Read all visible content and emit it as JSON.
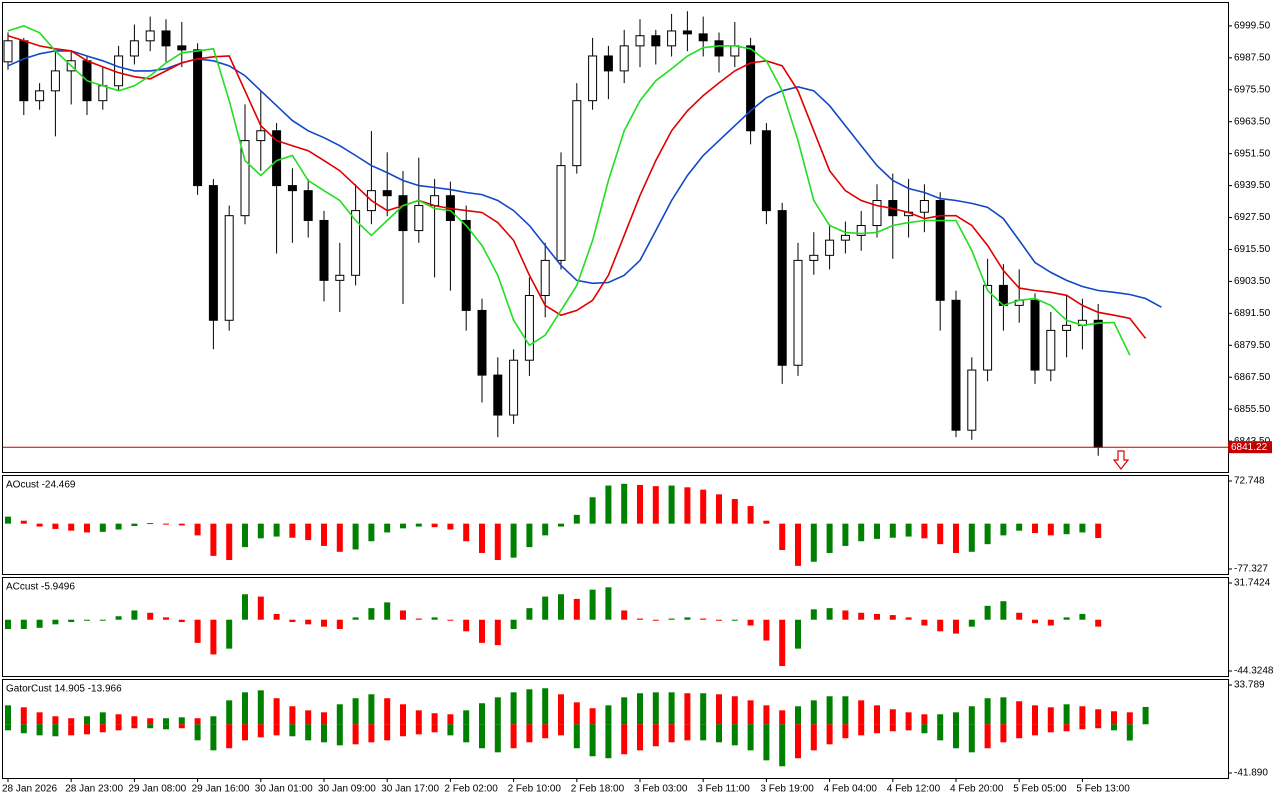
{
  "chart_data": [
    {
      "type": "candlestick",
      "categories": [
        "28 Jan 2026",
        null,
        null,
        null,
        "28 Jan 23:00",
        null,
        null,
        null,
        "29 Jan 08:00",
        null,
        null,
        null,
        "29 Jan 16:00",
        null,
        null,
        null,
        "30 Jan 01:00",
        null,
        null,
        null,
        "30 Jan 09:00",
        null,
        null,
        null,
        "30 Jan 17:00",
        null,
        null,
        null,
        "2 Feb 02:00",
        null,
        null,
        null,
        "2 Feb 10:00",
        null,
        null,
        null,
        "2 Feb 18:00",
        null,
        null,
        null,
        "3 Feb 03:00",
        null,
        null,
        null,
        "3 Feb 11:00",
        null,
        null,
        null,
        "3 Feb 19:00",
        null,
        null,
        null,
        "4 Feb 04:00",
        null,
        null,
        null,
        "4 Feb 12:00",
        null,
        null,
        null,
        "4 Feb 20:00",
        null,
        null,
        null,
        "5 Feb 05:00",
        null,
        null,
        null,
        "5 Feb 13:00",
        null,
        null,
        null,
        null,
        null
      ],
      "open": [
        6986.0,
        6993.9,
        6971.4,
        6975.1,
        6982.6,
        6986.4,
        6971.4,
        6977.0,
        6988.2,
        6993.9,
        6997.6,
        6992.0,
        6990.5,
        6939.5,
        6888.9,
        6928.2,
        6956.4,
        6960.1,
        6939.5,
        6937.6,
        6926.4,
        6903.9,
        6905.8,
        6930.1,
        6937.6,
        6935.7,
        6922.6,
        6932.0,
        6935.7,
        6926.4,
        6892.6,
        6868.3,
        6853.3,
        6873.9,
        6898.2,
        6911.4,
        6947.0,
        6971.4,
        6988.2,
        6982.6,
        6992.0,
        6995.8,
        6992.0,
        6997.6,
        6996.5,
        6993.9,
        6988.2,
        6992.0,
        6960.1,
        6930.1,
        6872.0,
        6911.4,
        6913.3,
        6919.0,
        6920.8,
        6924.5,
        6933.9,
        6928.2,
        6929.5,
        6933.9,
        6896.4,
        6847.6,
        6870.2,
        6902.0,
        6894.5,
        6896.4,
        6870.2,
        6885.1,
        6887.0,
        6888.9,
        null,
        null,
        null,
        null
      ],
      "high": [
        6997.0,
        6995.0,
        6978.0,
        6990.0,
        6990.0,
        6988.0,
        6984.0,
        6992.0,
        7000.0,
        7003.0,
        7002.0,
        7001.0,
        6993.0,
        6942.0,
        6932.0,
        6970.0,
        6975.0,
        6963.0,
        6946.0,
        6942.0,
        6930.0,
        6918.0,
        6940.0,
        6960.0,
        6952.0,
        6945.0,
        6950.0,
        6942.0,
        6941.0,
        6932.0,
        6897.0,
        6875.0,
        6878.0,
        6905.0,
        6918.0,
        6952.0,
        6978.0,
        6995.0,
        6992.0,
        6998.0,
        7002.0,
        6998.0,
        7004.0,
        7005.0,
        7003.0,
        6997.0,
        7001.0,
        6995.0,
        6963.0,
        6933.0,
        6918.0,
        6922.0,
        6925.0,
        6926.0,
        6930.0,
        6940.0,
        6944.0,
        6942.0,
        6940.0,
        6937.0,
        6900.0,
        6875.0,
        6912.0,
        6910.0,
        6908.0,
        6899.0,
        6892.0,
        6898.0,
        6897.0,
        6895.0,
        null,
        null,
        null,
        null
      ],
      "low": [
        6983.0,
        6966.0,
        6968.0,
        6958.0,
        6970.0,
        6966.0,
        6968.0,
        6975.0,
        6985.0,
        6990.0,
        6986.0,
        6984.0,
        6936.0,
        6878.0,
        6885.0,
        6925.0,
        6945.0,
        6914.0,
        6918.0,
        6920.0,
        6896.0,
        6892.0,
        6902.0,
        6925.0,
        6928.0,
        6895.0,
        6918.0,
        6905.0,
        6900.0,
        6885.0,
        6858.0,
        6845.0,
        6850.0,
        6868.0,
        6890.0,
        6908.0,
        6944.0,
        6968.0,
        6972.0,
        6978.0,
        6984.0,
        6985.0,
        6988.0,
        6990.0,
        6988.0,
        6982.0,
        6984.0,
        6955.0,
        6925.0,
        6865.0,
        6868.0,
        6906.0,
        6908.0,
        6914.0,
        6915.0,
        6920.0,
        6912.0,
        6920.0,
        6922.0,
        6885.0,
        6845.0,
        6844.0,
        6866.0,
        6885.0,
        6888.0,
        6865.0,
        6866.0,
        6875.0,
        6878.0,
        6838.0,
        null,
        null,
        null,
        null
      ],
      "close": [
        6993.9,
        6971.4,
        6975.1,
        6982.6,
        6986.4,
        6971.4,
        6977.0,
        6988.2,
        6993.9,
        6997.6,
        6992.0,
        6990.5,
        6939.5,
        6888.9,
        6928.2,
        6956.4,
        6960.1,
        6939.5,
        6937.6,
        6926.4,
        6903.9,
        6905.8,
        6930.1,
        6937.6,
        6935.7,
        6922.6,
        6932.0,
        6935.7,
        6926.4,
        6892.6,
        6868.3,
        6853.3,
        6873.9,
        6898.2,
        6911.4,
        6947.0,
        6971.4,
        6988.2,
        6982.6,
        6992.0,
        6995.8,
        6992.0,
        6997.6,
        6996.5,
        6993.9,
        6988.2,
        6992.0,
        6960.1,
        6930.1,
        6872.0,
        6911.4,
        6913.3,
        6919.0,
        6920.8,
        6924.5,
        6933.9,
        6928.2,
        6929.5,
        6933.9,
        6896.4,
        6847.6,
        6870.2,
        6902.0,
        6894.5,
        6896.4,
        6870.2,
        6885.1,
        6887.0,
        6888.9,
        6841.22,
        null,
        null,
        null,
        null
      ],
      "bull_color": "#ffffff",
      "bear_color": "#000000",
      "price_line_color": "#c00000",
      "series": [
        {
          "color": "#1048c8",
          "values": [
            6984.5,
            6987.1,
            6989.0,
            6990.1,
            6990.1,
            6988.2,
            6986.4,
            6984.1,
            6982.6,
            6982.6,
            6983.4,
            6985.6,
            6987.1,
            6986.4,
            6984.5,
            6980.8,
            6975.1,
            6969.5,
            6963.9,
            6960.1,
            6957.5,
            6954.5,
            6950.8,
            6947.0,
            6944.4,
            6941.4,
            6939.5,
            6938.8,
            6938.0,
            6936.9,
            6936.1,
            6933.9,
            6930.1,
            6924.5,
            6917.0,
            6909.5,
            6903.9,
            6902.8,
            6903.1,
            6905.8,
            6911.4,
            6922.6,
            6933.9,
            6943.3,
            6950.8,
            6956.4,
            6962.0,
            6967.6,
            6972.5,
            6975.1,
            6976.6,
            6975.1,
            6969.5,
            6962.0,
            6954.5,
            6947.0,
            6941.4,
            6938.4,
            6936.9,
            6934.6,
            6933.9,
            6932.8,
            6931.3,
            6927.1,
            6918.9,
            6910.6,
            6906.9,
            6903.9,
            6901.6,
            6900.1,
            6899.4,
            6898.6,
            6897.1,
            6893.8
          ]
        },
        {
          "color": "#e00000",
          "values": [
            6995.8,
            6993.9,
            6992.0,
            6990.9,
            6990.1,
            6986.4,
            6984.1,
            6981.9,
            6980.4,
            6979.6,
            6982.6,
            6985.6,
            6987.1,
            6987.9,
            6988.2,
            6975.1,
            6962.0,
            6956.4,
            6954.5,
            6952.6,
            6948.9,
            6945.1,
            6939.5,
            6933.9,
            6930.1,
            6932.0,
            6933.9,
            6932.0,
            6930.9,
            6930.1,
            6929.4,
            6925.6,
            6918.9,
            6905.8,
            6894.5,
            6890.8,
            6892.6,
            6896.4,
            6905.8,
            6920.8,
            6935.8,
            6948.9,
            6960.1,
            6967.6,
            6973.3,
            6978.1,
            6982.6,
            6985.6,
            6986.4,
            6984.5,
            6975.1,
            6960.1,
            6945.1,
            6937.6,
            6933.9,
            6932.0,
            6930.9,
            6929.4,
            6927.1,
            6928.2,
            6928.2,
            6924.5,
            6917.0,
            6907.6,
            6901.0,
            6900.1,
            6899.4,
            6898.3,
            6894.5,
            6891.9,
            6890.8,
            6889.6,
            6882.1,
            null
          ]
        },
        {
          "color": "#22dd22",
          "values": [
            6997.6,
            6999.5,
            6996.9,
            6990.1,
            6984.5,
            6978.9,
            6977.0,
            6975.1,
            6977.0,
            6980.8,
            6985.6,
            6989.4,
            6990.1,
            6990.9,
            6971.4,
            6948.9,
            6943.3,
            6948.9,
            6950.8,
            6941.4,
            6937.6,
            6933.9,
            6926.4,
            6920.8,
            6926.4,
            6932.0,
            6933.9,
            6930.9,
            6930.1,
            6924.5,
            6917.0,
            6905.8,
            6888.9,
            6879.5,
            6883.3,
            6892.6,
            6902.0,
            6918.9,
            6941.4,
            6960.1,
            6971.4,
            6978.9,
            6983.4,
            6988.2,
            6991.3,
            6992.0,
            6992.0,
            6990.9,
            6986.4,
            6975.1,
            6956.4,
            6933.9,
            6924.5,
            6921.9,
            6921.5,
            6921.9,
            6924.5,
            6925.6,
            6926.4,
            6926.4,
            6926.4,
            6915.1,
            6900.1,
            6894.5,
            6896.4,
            6897.1,
            6894.5,
            6888.9,
            6887.0,
            6887.8,
            6888.1,
            6875.8,
            null,
            null
          ]
        }
      ],
      "ylim": [
        6831.9,
        7008.1
      ],
      "yticks": [
        {
          "value": 6999.5,
          "label": "6999.50"
        },
        {
          "value": 6987.5,
          "label": "6987.50"
        },
        {
          "value": 6975.5,
          "label": "6975.50"
        },
        {
          "value": 6963.5,
          "label": "6963.50"
        },
        {
          "value": 6951.5,
          "label": "6951.50"
        },
        {
          "value": 6939.5,
          "label": "6939.50"
        },
        {
          "value": 6927.5,
          "label": "6927.50"
        },
        {
          "value": 6915.5,
          "label": "6915.50"
        },
        {
          "value": 6903.5,
          "label": "6903.50"
        },
        {
          "value": 6891.5,
          "label": "6891.50"
        },
        {
          "value": 6879.5,
          "label": "6879.50"
        },
        {
          "value": 6867.5,
          "label": "6867.50"
        },
        {
          "value": 6855.5,
          "label": "6855.50"
        },
        {
          "value": 6843.5,
          "label": "6843.50"
        }
      ]
    },
    {
      "type": "histogram",
      "title": "AOcust -24.469",
      "values": [
        12,
        5,
        -5,
        -9,
        -12,
        -15,
        -14,
        -10,
        -4,
        1,
        0,
        -3,
        -20,
        -55,
        -62,
        -40,
        -25,
        -22,
        -24,
        -28,
        -38,
        -48,
        -44,
        -30,
        -15,
        -8,
        -5,
        -6,
        -10,
        -30,
        -50,
        -62,
        -58,
        -40,
        -20,
        -5,
        15,
        45,
        65,
        68,
        66,
        64,
        65,
        62,
        58,
        50,
        42,
        30,
        5,
        -45,
        -72,
        -65,
        -50,
        -38,
        -30,
        -26,
        -24,
        -22,
        -25,
        -35,
        -50,
        -48,
        -35,
        -20,
        -12,
        -16,
        -20,
        -18,
        -15,
        -24.469
      ],
      "up_color": "#008000",
      "down_color": "#ff0000",
      "ylim": [
        -85.9,
        81.3
      ],
      "yticks": [
        72.748,
        -77.327
      ]
    },
    {
      "type": "histogram",
      "title": "ACcust -5.9496",
      "values": [
        -8,
        -8,
        -7,
        -4,
        -2,
        0,
        0,
        3,
        8,
        6,
        2,
        -2,
        -20,
        -30,
        -25,
        22,
        20,
        5,
        -2,
        -4,
        -6,
        -8,
        2,
        10,
        15,
        8,
        1,
        2,
        0,
        -10,
        -20,
        -22,
        -8,
        10,
        20,
        22,
        18,
        26,
        28,
        8,
        1,
        0,
        1,
        2,
        1,
        0,
        0,
        -5,
        -18,
        -40,
        -25,
        9,
        10,
        8,
        6,
        5,
        4,
        2,
        -5,
        -10,
        -12,
        -6,
        12,
        16,
        6,
        -3,
        -5,
        2,
        5,
        -5.9496
      ],
      "up_color": "#008000",
      "down_color": "#ff0000",
      "ylim": [
        -48.65,
        36.06
      ],
      "yticks": [
        31.7424,
        -44.3248
      ]
    },
    {
      "type": "gator",
      "title": "GatorCust 14.905 -13.966",
      "upper": [
        16.3,
        14.6,
        10.3,
        6.9,
        5.2,
        6.9,
        10.3,
        8.6,
        6.9,
        5.2,
        5.2,
        6.0,
        5.2,
        6.9,
        20.6,
        27.5,
        29.2,
        22.4,
        15.5,
        12.0,
        10.3,
        17.2,
        22.4,
        25.8,
        22.4,
        17.2,
        12.0,
        9.5,
        8.6,
        12.0,
        18.1,
        23.2,
        27.5,
        30.1,
        31.0,
        25.8,
        18.9,
        13.8,
        16.3,
        23.2,
        26.7,
        27.5,
        27.5,
        26.7,
        26.7,
        25.8,
        24.1,
        20.6,
        16.3,
        12.0,
        15.5,
        20.6,
        24.1,
        24.1,
        20.6,
        16.3,
        12.9,
        10.3,
        8.6,
        8.6,
        10.3,
        15.5,
        22.4,
        23.2,
        19.8,
        16.3,
        14.6,
        17.2,
        15.5,
        12.9,
        11.2,
        10.3,
        14.905,
        null
      ],
      "lower": [
        -5.2,
        -7.7,
        -9.5,
        -10.3,
        -9.5,
        -8.6,
        -6.9,
        -5.2,
        -3.4,
        -3.4,
        -4.3,
        -3.4,
        -13.8,
        -22.4,
        -20.6,
        -13.8,
        -11.2,
        -9.5,
        -10.3,
        -13.8,
        -15.5,
        -18.1,
        -17.2,
        -15.5,
        -13.8,
        -10.3,
        -8.6,
        -6.9,
        -9.5,
        -15.5,
        -20.6,
        -24.1,
        -20.6,
        -15.5,
        -12.0,
        -9.5,
        -20.6,
        -27.5,
        -29.2,
        -25.8,
        -22.4,
        -18.9,
        -15.5,
        -13.8,
        -13.8,
        -15.5,
        -18.1,
        -22.4,
        -31.0,
        -36.1,
        -29.2,
        -22.4,
        -17.2,
        -12.0,
        -9.5,
        -7.7,
        -6.0,
        -5.2,
        -7.7,
        -13.8,
        -20.6,
        -24.1,
        -20.6,
        -15.5,
        -12.0,
        -9.5,
        -6.9,
        -6.0,
        -4.3,
        -3.4,
        -5.2,
        -13.966,
        null,
        null
      ],
      "up_color": "#008000",
      "down_color": "#ff0000",
      "ylim": [
        -46.19,
        38.09
      ],
      "yticks": [
        33.789,
        {
          "value": -41.89,
          "label": "-41.890"
        }
      ]
    }
  ]
}
